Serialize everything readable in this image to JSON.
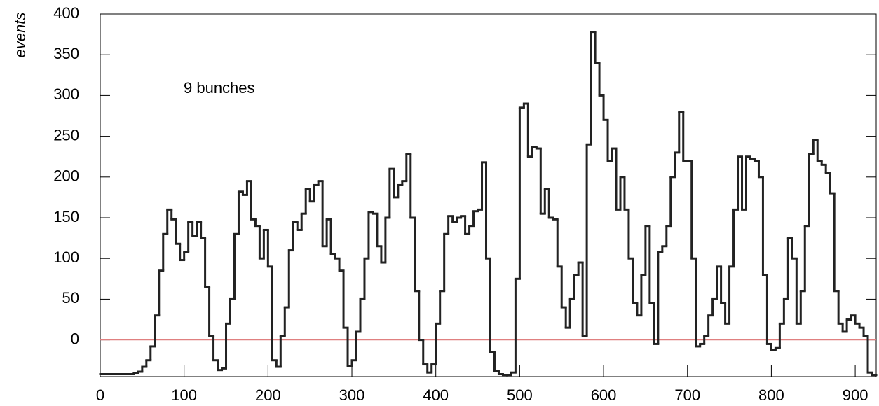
{
  "chart_data": {
    "type": "histogram",
    "ylabel": "events",
    "annotation": "9   bunches",
    "color": "#222222",
    "zero_line_color": "#e08080",
    "bins": [
      0,
      5,
      10,
      15,
      20,
      25,
      30,
      35,
      40,
      45,
      50,
      55,
      60,
      65,
      70,
      75,
      80,
      85,
      90,
      95,
      100,
      105,
      110,
      115,
      120,
      125,
      130,
      135,
      140,
      145,
      150,
      155,
      160,
      165,
      170,
      175,
      180,
      185,
      190,
      195,
      200,
      205,
      210,
      215,
      220,
      225,
      230,
      235,
      240,
      245,
      250,
      255,
      260,
      265,
      270,
      275,
      280,
      285,
      290,
      295,
      300,
      305,
      310,
      315,
      320,
      325,
      330,
      335,
      340,
      345,
      350,
      355,
      360,
      365,
      370,
      375,
      380,
      385,
      390,
      395,
      400,
      405,
      410,
      415,
      420,
      425,
      430,
      435,
      440,
      445,
      450,
      455,
      460,
      465,
      470,
      475,
      480,
      485,
      490,
      495,
      500,
      505,
      510,
      515,
      520,
      525,
      530,
      535,
      540,
      545,
      550,
      555,
      560,
      565,
      570,
      575,
      580,
      585,
      590,
      595,
      600,
      605,
      610,
      615,
      620,
      625,
      630,
      635,
      640,
      645,
      650,
      655,
      660,
      665,
      670,
      675,
      680,
      685,
      690,
      695,
      700,
      705,
      710,
      715,
      720,
      725,
      730,
      735,
      740,
      745,
      750,
      755,
      760,
      765,
      770,
      775,
      780,
      785,
      790,
      795,
      800,
      805,
      810,
      815,
      820,
      825,
      830,
      835,
      840,
      845,
      850,
      855,
      860,
      865,
      870,
      875,
      880,
      885,
      890,
      895,
      900,
      905,
      910,
      915,
      920,
      925
    ],
    "values": [
      -42,
      -42,
      -42,
      -42,
      -42,
      -42,
      -42,
      -42,
      -41,
      -39,
      -33,
      -25,
      -8,
      30,
      85,
      130,
      160,
      148,
      118,
      98,
      108,
      145,
      128,
      145,
      125,
      65,
      5,
      -25,
      -37,
      -35,
      20,
      50,
      130,
      182,
      178,
      195,
      148,
      140,
      100,
      135,
      90,
      -25,
      -33,
      5,
      40,
      110,
      145,
      135,
      155,
      185,
      170,
      190,
      195,
      115,
      148,
      105,
      100,
      85,
      15,
      -32,
      -25,
      10,
      50,
      100,
      157,
      155,
      115,
      95,
      150,
      210,
      175,
      190,
      195,
      228,
      150,
      60,
      0,
      -30,
      -40,
      -30,
      20,
      60,
      130,
      152,
      145,
      150,
      152,
      130,
      140,
      158,
      160,
      218,
      100,
      -15,
      -38,
      -42,
      -43,
      -43,
      -40,
      75,
      285,
      290,
      225,
      237,
      235,
      155,
      185,
      150,
      148,
      90,
      40,
      15,
      50,
      80,
      95,
      5,
      240,
      378,
      340,
      300,
      270,
      220,
      235,
      160,
      200,
      160,
      100,
      45,
      30,
      80,
      140,
      45,
      -5,
      108,
      115,
      140,
      200,
      230,
      280,
      220,
      220,
      100,
      -8,
      -5,
      5,
      30,
      50,
      90,
      45,
      20,
      90,
      160,
      225,
      160,
      225,
      222,
      220,
      200,
      80,
      -5,
      -12,
      -10,
      20,
      50,
      125,
      100,
      20,
      60,
      140,
      228,
      245,
      220,
      215,
      205,
      180,
      60,
      20,
      10,
      25,
      30,
      20,
      15,
      5,
      -40,
      -43
    ],
    "xlim": [
      0,
      925
    ],
    "ylim": [
      -45,
      400
    ],
    "xticks": [
      0,
      100,
      200,
      300,
      400,
      500,
      600,
      700,
      800,
      900
    ],
    "yticks": [
      0,
      50,
      100,
      150,
      200,
      250,
      300,
      350,
      400
    ]
  }
}
